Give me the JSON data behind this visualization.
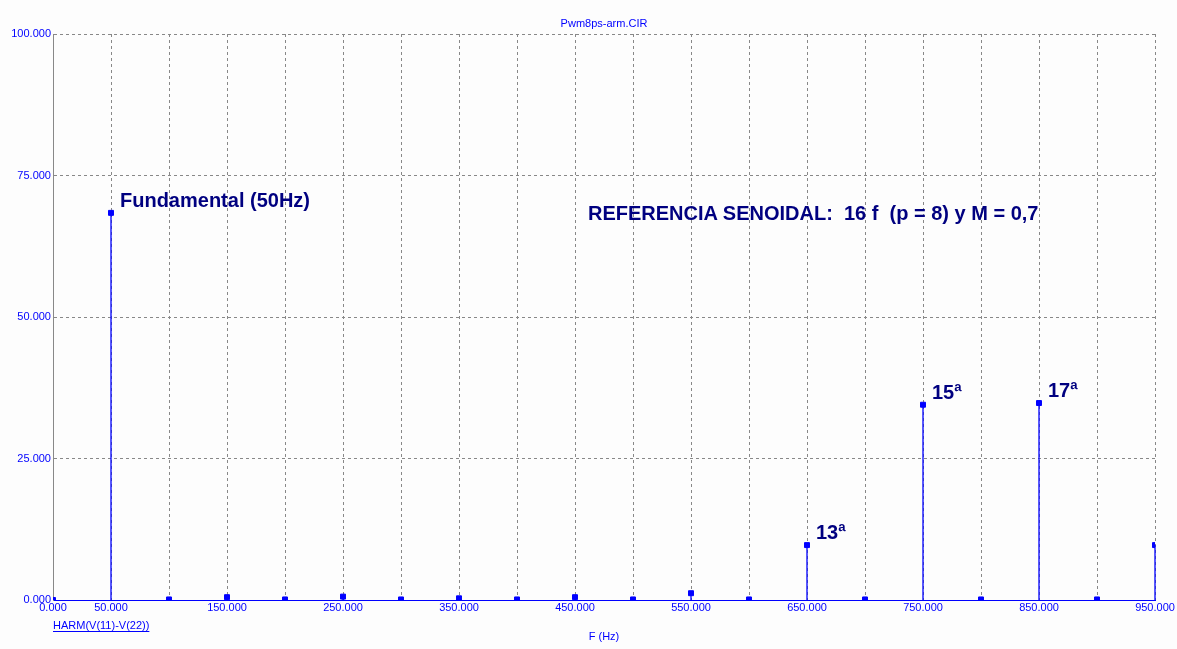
{
  "chart_data": {
    "type": "lollipop",
    "title": "Pwm8ps-arm.CIR",
    "xlabel": "F (Hz)",
    "x": [
      0,
      50,
      100,
      150,
      200,
      250,
      300,
      350,
      400,
      450,
      500,
      550,
      600,
      650,
      700,
      750,
      800,
      850,
      900,
      950
    ],
    "series": [
      {
        "name": "HARM(V(11)-V(22))",
        "color": "#0000ff",
        "values": [
          0,
          68.4,
          0.1,
          0.5,
          0.1,
          0.6,
          0.1,
          0.3,
          0.1,
          0.5,
          0.1,
          1.2,
          0.1,
          9.7,
          0.1,
          34.5,
          0.1,
          34.8,
          0.1,
          9.7
        ]
      }
    ],
    "xlim": [
      0,
      950
    ],
    "xticks": [
      {
        "value": 0,
        "label": "0.000"
      },
      {
        "value": 50,
        "label": "50.000"
      },
      {
        "value": 100,
        "label": null
      },
      {
        "value": 150,
        "label": "150.000"
      },
      {
        "value": 200,
        "label": null
      },
      {
        "value": 250,
        "label": "250.000"
      },
      {
        "value": 300,
        "label": null
      },
      {
        "value": 350,
        "label": "350.000"
      },
      {
        "value": 400,
        "label": null
      },
      {
        "value": 450,
        "label": "450.000"
      },
      {
        "value": 500,
        "label": null
      },
      {
        "value": 550,
        "label": "550.000"
      },
      {
        "value": 600,
        "label": null
      },
      {
        "value": 650,
        "label": "650.000"
      },
      {
        "value": 700,
        "label": null
      },
      {
        "value": 750,
        "label": "750.000"
      },
      {
        "value": 800,
        "label": null
      },
      {
        "value": 850,
        "label": "850.000"
      },
      {
        "value": 900,
        "label": null
      },
      {
        "value": 950,
        "label": "950.000"
      }
    ],
    "ylim": [
      0,
      100
    ],
    "yticks": [
      {
        "value": 0,
        "label": "0.000"
      },
      {
        "value": 25,
        "label": "25.000"
      },
      {
        "value": 50,
        "label": "50.000"
      },
      {
        "value": 75,
        "label": "75.000"
      },
      {
        "value": 100,
        "label": "100.000"
      }
    ],
    "grid": true,
    "legend": false,
    "marker": "square",
    "annotations": [
      {
        "text": "Fundamental (50Hz)",
        "x": 50,
        "y": 68.4
      },
      {
        "text": "13ª",
        "x": 650,
        "y": 9.7
      },
      {
        "text": "15ª",
        "x": 750,
        "y": 34.5
      },
      {
        "text": "17ª",
        "x": 850,
        "y": 34.8
      },
      "REFERENCIA SENOIDAL:  16 f  (p = 8) y M = 0,7"
    ]
  }
}
